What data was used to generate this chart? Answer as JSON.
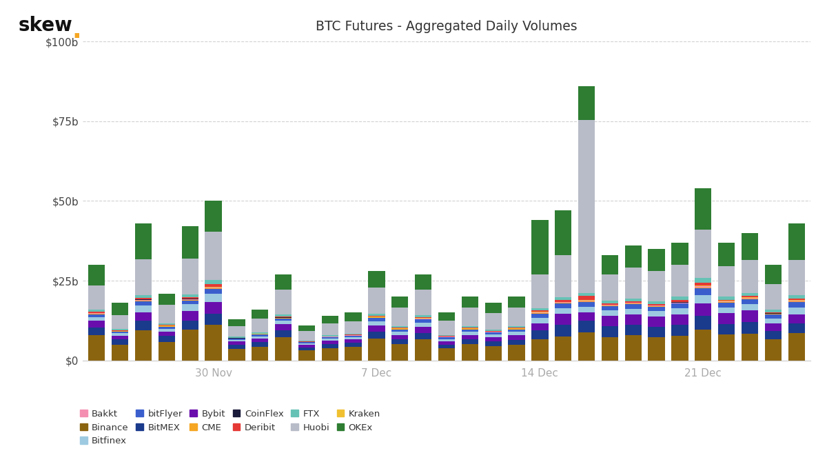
{
  "title": "BTC Futures - Aggregated Daily Volumes",
  "exchanges_order": [
    "Binance",
    "BitMEX",
    "Bybit",
    "Bitfinex",
    "bitFlyer",
    "CME",
    "Bakkt",
    "CoinFlex",
    "Kraken",
    "Deribit",
    "FTX",
    "Huobi",
    "OKEx"
  ],
  "colors": {
    "Binance": "#8B6410",
    "BitMEX": "#1a3a8c",
    "Bybit": "#6a0dad",
    "Bitfinex": "#9ecae1",
    "bitFlyer": "#3a5fcd",
    "CME": "#f5a623",
    "Bakkt": "#f48fb1",
    "CoinFlex": "#1a1a3a",
    "Kraken": "#f0c030",
    "Deribit": "#e53935",
    "FTX": "#66c2b5",
    "Huobi": "#b8bcc8",
    "OKEx": "#2e7d32"
  },
  "legend_order": [
    [
      "Bakkt",
      "#f48fb1"
    ],
    [
      "Binance",
      "#8B6410"
    ],
    [
      "Bitfinex",
      "#9ecae1"
    ],
    [
      "bitFlyer",
      "#3a5fcd"
    ],
    [
      "BitMEX",
      "#1a3a8c"
    ],
    [
      "Bybit",
      "#6a0dad"
    ],
    [
      "CME",
      "#f5a623"
    ],
    [
      "CoinFlex",
      "#1a1a3a"
    ],
    [
      "Deribit",
      "#e53935"
    ],
    [
      "FTX",
      "#66c2b5"
    ],
    [
      "Huobi",
      "#b8bcc8"
    ],
    [
      "Kraken",
      "#f0c030"
    ],
    [
      "OKEx",
      "#2e7d32"
    ]
  ],
  "totals": [
    30,
    18,
    43,
    21,
    42,
    50,
    13,
    16,
    27,
    11,
    14,
    15,
    28,
    20,
    27,
    15,
    20,
    18,
    20,
    44,
    47,
    86,
    33,
    36,
    35,
    37,
    54,
    37,
    40,
    30,
    43
  ],
  "fracs": [
    [
      0.27,
      0.08,
      0.07,
      0.04,
      0.03,
      0.005,
      0.005,
      0.002,
      0.003,
      0.01,
      0.02,
      0.26,
      0.22
    ],
    [
      0.28,
      0.09,
      0.07,
      0.04,
      0.03,
      0.005,
      0.005,
      0.002,
      0.003,
      0.01,
      0.02,
      0.25,
      0.21
    ],
    [
      0.22,
      0.07,
      0.06,
      0.05,
      0.03,
      0.005,
      0.005,
      0.002,
      0.003,
      0.01,
      0.02,
      0.26,
      0.26
    ],
    [
      0.27,
      0.09,
      0.07,
      0.04,
      0.03,
      0.005,
      0.005,
      0.002,
      0.003,
      0.01,
      0.02,
      0.28,
      0.17
    ],
    [
      0.23,
      0.07,
      0.07,
      0.05,
      0.03,
      0.005,
      0.005,
      0.002,
      0.003,
      0.01,
      0.02,
      0.27,
      0.24
    ],
    [
      0.22,
      0.07,
      0.07,
      0.05,
      0.03,
      0.005,
      0.005,
      0.002,
      0.003,
      0.015,
      0.025,
      0.3,
      0.19
    ],
    [
      0.28,
      0.09,
      0.08,
      0.04,
      0.03,
      0.005,
      0.005,
      0.002,
      0.003,
      0.01,
      0.02,
      0.26,
      0.17
    ],
    [
      0.27,
      0.09,
      0.08,
      0.04,
      0.03,
      0.005,
      0.005,
      0.002,
      0.003,
      0.01,
      0.02,
      0.27,
      0.19
    ],
    [
      0.27,
      0.08,
      0.07,
      0.04,
      0.03,
      0.005,
      0.005,
      0.002,
      0.003,
      0.01,
      0.02,
      0.29,
      0.18
    ],
    [
      0.28,
      0.09,
      0.08,
      0.04,
      0.03,
      0.005,
      0.005,
      0.002,
      0.003,
      0.01,
      0.02,
      0.27,
      0.17
    ],
    [
      0.28,
      0.09,
      0.08,
      0.04,
      0.03,
      0.005,
      0.005,
      0.002,
      0.003,
      0.01,
      0.02,
      0.27,
      0.17
    ],
    [
      0.28,
      0.09,
      0.08,
      0.04,
      0.03,
      0.005,
      0.005,
      0.002,
      0.003,
      0.01,
      0.02,
      0.27,
      0.18
    ],
    [
      0.25,
      0.08,
      0.07,
      0.05,
      0.04,
      0.005,
      0.005,
      0.002,
      0.003,
      0.01,
      0.025,
      0.3,
      0.19
    ],
    [
      0.26,
      0.08,
      0.07,
      0.05,
      0.04,
      0.005,
      0.005,
      0.002,
      0.003,
      0.01,
      0.025,
      0.3,
      0.18
    ],
    [
      0.25,
      0.08,
      0.07,
      0.05,
      0.04,
      0.005,
      0.005,
      0.002,
      0.003,
      0.01,
      0.025,
      0.31,
      0.18
    ],
    [
      0.26,
      0.08,
      0.07,
      0.05,
      0.04,
      0.005,
      0.005,
      0.002,
      0.003,
      0.01,
      0.025,
      0.3,
      0.18
    ],
    [
      0.26,
      0.08,
      0.07,
      0.05,
      0.04,
      0.005,
      0.005,
      0.002,
      0.003,
      0.01,
      0.025,
      0.3,
      0.18
    ],
    [
      0.26,
      0.08,
      0.07,
      0.05,
      0.04,
      0.005,
      0.005,
      0.002,
      0.003,
      0.01,
      0.025,
      0.3,
      0.18
    ],
    [
      0.25,
      0.08,
      0.08,
      0.05,
      0.04,
      0.005,
      0.005,
      0.002,
      0.003,
      0.01,
      0.025,
      0.3,
      0.18
    ],
    [
      0.15,
      0.06,
      0.05,
      0.04,
      0.03,
      0.004,
      0.004,
      0.002,
      0.002,
      0.01,
      0.015,
      0.24,
      0.38
    ],
    [
      0.16,
      0.08,
      0.07,
      0.04,
      0.03,
      0.004,
      0.004,
      0.002,
      0.002,
      0.01,
      0.02,
      0.28,
      0.3
    ],
    [
      0.1,
      0.04,
      0.03,
      0.02,
      0.015,
      0.003,
      0.003,
      0.001,
      0.002,
      0.015,
      0.01,
      0.61,
      0.12
    ],
    [
      0.22,
      0.1,
      0.1,
      0.05,
      0.04,
      0.005,
      0.005,
      0.002,
      0.003,
      0.01,
      0.025,
      0.25,
      0.18
    ],
    [
      0.22,
      0.09,
      0.09,
      0.05,
      0.04,
      0.005,
      0.005,
      0.002,
      0.003,
      0.01,
      0.025,
      0.27,
      0.19
    ],
    [
      0.21,
      0.09,
      0.09,
      0.05,
      0.04,
      0.005,
      0.005,
      0.002,
      0.003,
      0.01,
      0.025,
      0.27,
      0.2
    ],
    [
      0.21,
      0.09,
      0.09,
      0.05,
      0.04,
      0.005,
      0.005,
      0.002,
      0.003,
      0.015,
      0.03,
      0.27,
      0.19
    ],
    [
      0.18,
      0.08,
      0.07,
      0.05,
      0.04,
      0.005,
      0.005,
      0.002,
      0.003,
      0.015,
      0.03,
      0.28,
      0.24
    ],
    [
      0.22,
      0.09,
      0.09,
      0.05,
      0.04,
      0.005,
      0.005,
      0.002,
      0.003,
      0.01,
      0.025,
      0.26,
      0.2
    ],
    [
      0.21,
      0.09,
      0.09,
      0.05,
      0.04,
      0.005,
      0.005,
      0.002,
      0.003,
      0.01,
      0.025,
      0.26,
      0.21
    ],
    [
      0.22,
      0.09,
      0.08,
      0.05,
      0.04,
      0.005,
      0.005,
      0.002,
      0.003,
      0.01,
      0.025,
      0.27,
      0.2
    ],
    [
      0.2,
      0.07,
      0.07,
      0.05,
      0.04,
      0.005,
      0.005,
      0.002,
      0.003,
      0.01,
      0.025,
      0.26,
      0.27
    ]
  ],
  "xtick_idx": [
    5,
    12,
    19,
    26
  ],
  "xtick_labels": [
    "30 Nov",
    "7 Dec",
    "14 Dec",
    "21 Dec"
  ],
  "ylim": [
    0,
    100
  ],
  "yticks": [
    0,
    25,
    50,
    75,
    100
  ],
  "ytick_labels": [
    "$0",
    "$25b",
    "$50b",
    "$75b",
    "$100b"
  ]
}
